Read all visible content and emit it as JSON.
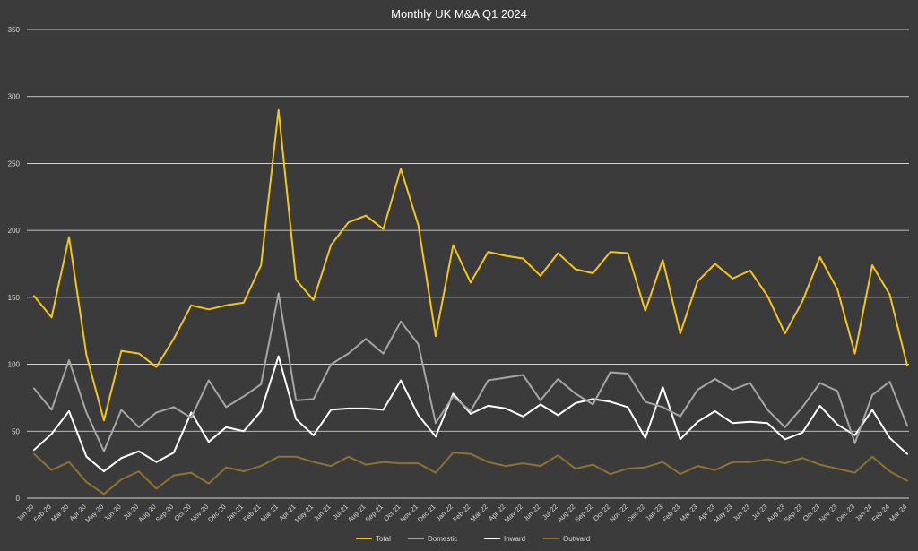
{
  "chart_data": {
    "type": "line",
    "title": "Monthly UK M&A Q1 2024",
    "xlabel": "",
    "ylabel": "",
    "ylim": [
      0,
      350
    ],
    "yticks": [
      0,
      50,
      100,
      150,
      200,
      250,
      300,
      350
    ],
    "grid": true,
    "legend_position": "bottom",
    "categories": [
      "Jan-20",
      "Feb-20",
      "Mar-20",
      "Apr-20",
      "May-20",
      "Jun-20",
      "Jul-20",
      "Aug-20",
      "Sep-20",
      "Oct-20",
      "Nov-20",
      "Dec-20",
      "Jan-21",
      "Feb-21",
      "Mar-21",
      "Apr-21",
      "May-21",
      "Jun-21",
      "Jul-21",
      "Aug-21",
      "Sep-21",
      "Oct-21",
      "Nov-21",
      "Dec-21",
      "Jan-22",
      "Feb-22",
      "Mar-22",
      "Apr-22",
      "May-22",
      "Jun-22",
      "Jul-22",
      "Aug-22",
      "Sep-22",
      "Oct-22",
      "Nov-22",
      "Dec-22",
      "Jan-23",
      "Feb-23",
      "Mar-23",
      "Apr-23",
      "May-23",
      "Jun-23",
      "Jul-23",
      "Aug-23",
      "Sep-23",
      "Oct-23",
      "Nov-23",
      "Dec-23",
      "Jan-24",
      "Feb-24",
      "Mar-24"
    ],
    "series": [
      {
        "name": "Total",
        "color": "#f5c518",
        "values": [
          151,
          135,
          195,
          107,
          58,
          110,
          108,
          98,
          119,
          144,
          141,
          144,
          146,
          174,
          290,
          163,
          148,
          189,
          206,
          211,
          201,
          246,
          204,
          121,
          189,
          161,
          184,
          181,
          179,
          166,
          183,
          171,
          168,
          184,
          183,
          140,
          178,
          123,
          162,
          175,
          164,
          170,
          151,
          123,
          147,
          180,
          156,
          108,
          174,
          152,
          99
        ]
      },
      {
        "name": "Domestic",
        "color": "#a6a6a6",
        "values": [
          82,
          66,
          103,
          64,
          35,
          66,
          53,
          64,
          68,
          60,
          88,
          68,
          76,
          85,
          153,
          73,
          74,
          100,
          108,
          119,
          108,
          132,
          115,
          56,
          76,
          65,
          88,
          90,
          92,
          73,
          89,
          78,
          70,
          94,
          93,
          72,
          68,
          61,
          81,
          89,
          81,
          86,
          66,
          53,
          68,
          86,
          80,
          41,
          77,
          87,
          54
        ]
      },
      {
        "name": "Inward",
        "color": "#ffffff",
        "values": [
          36,
          48,
          65,
          31,
          20,
          30,
          35,
          27,
          34,
          64,
          42,
          53,
          50,
          65,
          106,
          59,
          47,
          66,
          67,
          67,
          66,
          88,
          62,
          46,
          78,
          63,
          69,
          67,
          61,
          70,
          62,
          71,
          74,
          72,
          68,
          45,
          83,
          44,
          57,
          65,
          56,
          57,
          56,
          44,
          49,
          69,
          55,
          47,
          66,
          45,
          33
        ]
      },
      {
        "name": "Outward",
        "color": "#8c7330",
        "values": [
          33,
          21,
          27,
          12,
          3,
          14,
          20,
          7,
          17,
          19,
          11,
          23,
          20,
          24,
          31,
          31,
          27,
          24,
          31,
          25,
          27,
          26,
          26,
          19,
          34,
          33,
          27,
          24,
          26,
          24,
          32,
          22,
          25,
          18,
          22,
          23,
          27,
          18,
          24,
          21,
          27,
          27,
          29,
          26,
          30,
          25,
          22,
          19,
          31,
          20,
          13
        ]
      }
    ]
  }
}
